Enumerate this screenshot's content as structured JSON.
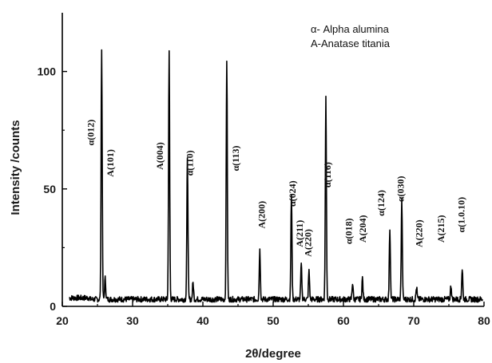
{
  "chart_data": {
    "type": "line",
    "xlabel": "2θ/degree",
    "ylabel": "Intensity /counts",
    "xlim": [
      20,
      80
    ],
    "ylim": [
      0,
      125
    ],
    "x_ticks": [
      20,
      30,
      40,
      50,
      60,
      70,
      80
    ],
    "y_ticks": [
      0,
      50,
      100
    ],
    "grid": false,
    "line_color": "#000000",
    "legend": {
      "placement": "top-right",
      "entries": [
        "α- Alpha alumina",
        "A-Anatase titania"
      ]
    },
    "baseline": 3,
    "peaks": [
      {
        "x": 25.6,
        "y": 109
      },
      {
        "x": 26.1,
        "y": 12
      },
      {
        "x": 35.2,
        "y": 108
      },
      {
        "x": 37.8,
        "y": 64
      },
      {
        "x": 38.6,
        "y": 10
      },
      {
        "x": 43.4,
        "y": 105
      },
      {
        "x": 48.1,
        "y": 24
      },
      {
        "x": 52.6,
        "y": 47
      },
      {
        "x": 54.0,
        "y": 18
      },
      {
        "x": 55.1,
        "y": 15
      },
      {
        "x": 57.5,
        "y": 89
      },
      {
        "x": 61.3,
        "y": 10
      },
      {
        "x": 62.7,
        "y": 12
      },
      {
        "x": 66.6,
        "y": 33
      },
      {
        "x": 68.3,
        "y": 45
      },
      {
        "x": 70.4,
        "y": 8
      },
      {
        "x": 75.3,
        "y": 9
      },
      {
        "x": 76.9,
        "y": 16
      }
    ],
    "annotations": [
      {
        "text": "α(012)",
        "x": 24.5,
        "y": 74
      },
      {
        "text": "A(101)",
        "x": 27.3,
        "y": 61
      },
      {
        "text": "A(004)",
        "x": 34.3,
        "y": 64
      },
      {
        "text": "α(110)",
        "x": 38.6,
        "y": 61
      },
      {
        "text": "α(113)",
        "x": 45.1,
        "y": 63
      },
      {
        "text": "A(200)",
        "x": 48.8,
        "y": 39
      },
      {
        "text": "α(024)",
        "x": 53.2,
        "y": 48
      },
      {
        "text": "A(211)",
        "x": 54.2,
        "y": 31
      },
      {
        "text": "A(220)",
        "x": 55.4,
        "y": 27
      },
      {
        "text": "α(116)",
        "x": 58.2,
        "y": 56
      },
      {
        "text": "α(018)",
        "x": 61.2,
        "y": 32
      },
      {
        "text": "A(204)",
        "x": 63.2,
        "y": 33
      },
      {
        "text": "α(124)",
        "x": 65.8,
        "y": 44
      },
      {
        "text": "α(030)",
        "x": 68.6,
        "y": 50
      },
      {
        "text": "A(220)",
        "x": 71.2,
        "y": 31
      },
      {
        "text": "A(215)",
        "x": 74.3,
        "y": 33
      },
      {
        "text": "α(1.0.10)",
        "x": 77.2,
        "y": 39
      }
    ]
  }
}
